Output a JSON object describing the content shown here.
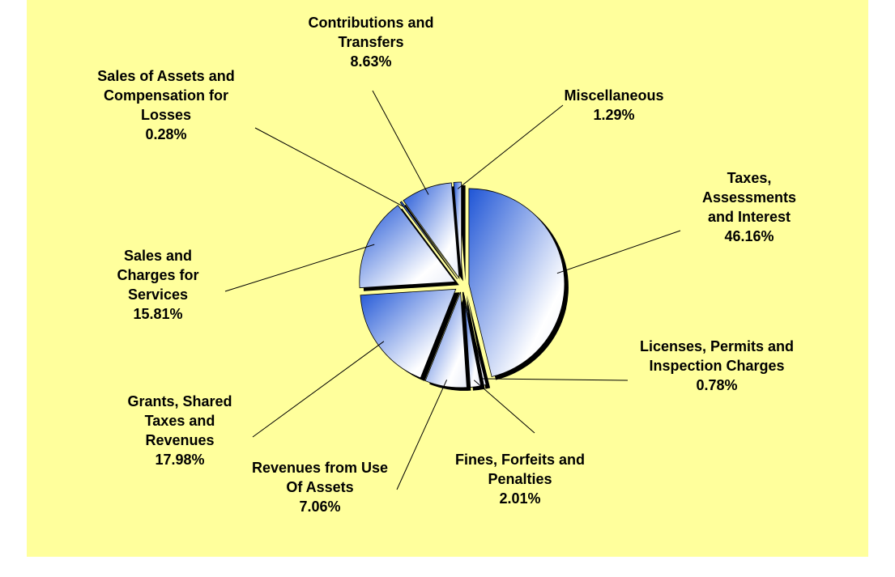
{
  "chart_data": {
    "type": "pie",
    "categories": [
      "Taxes, Assessments and Interest",
      "Licenses, Permits and Inspection Charges",
      "Fines, Forfeits and Penalties",
      "Revenues from Use Of Assets",
      "Grants, Shared Taxes and Revenues",
      "Sales and Charges for Services",
      "Sales of Assets and Compensation for Losses",
      "Contributions and Transfers",
      "Miscellaneous"
    ],
    "values": [
      46.16,
      0.78,
      2.01,
      7.06,
      17.98,
      15.81,
      0.28,
      8.63,
      1.29
    ],
    "value_labels": [
      "46.16%",
      "0.78%",
      "2.01%",
      "7.06%",
      "17.98%",
      "15.81%",
      "0.28%",
      "8.63%",
      "1.29%"
    ],
    "color": "#1f55d6"
  }
}
